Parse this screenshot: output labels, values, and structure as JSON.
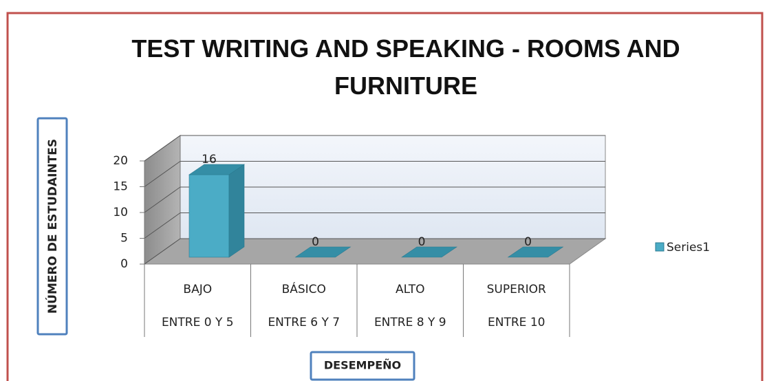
{
  "chart_data": {
    "type": "bar3d",
    "title": "TEST WRITING AND SPEAKING - ROOMS AND FURNITURE",
    "y_axis_label": "NÚMERO DE ESTUDAINTES",
    "x_axis_label": "DESEMPEÑO",
    "categories": [
      "BAJO",
      "BÁSICO",
      "ALTO",
      "SUPERIOR"
    ],
    "categories_level2": [
      "ENTRE 0 Y 5",
      "ENTRE 6 Y 7",
      "ENTRE 8 Y 9",
      "ENTRE 10"
    ],
    "series": [
      {
        "name": "Series1",
        "color": "#4bacc6",
        "values": [
          16,
          0,
          0,
          0
        ]
      }
    ],
    "ylim": [
      0,
      20
    ],
    "yticks": [
      0,
      5,
      10,
      15,
      20
    ],
    "grid": true,
    "legend": "right"
  }
}
